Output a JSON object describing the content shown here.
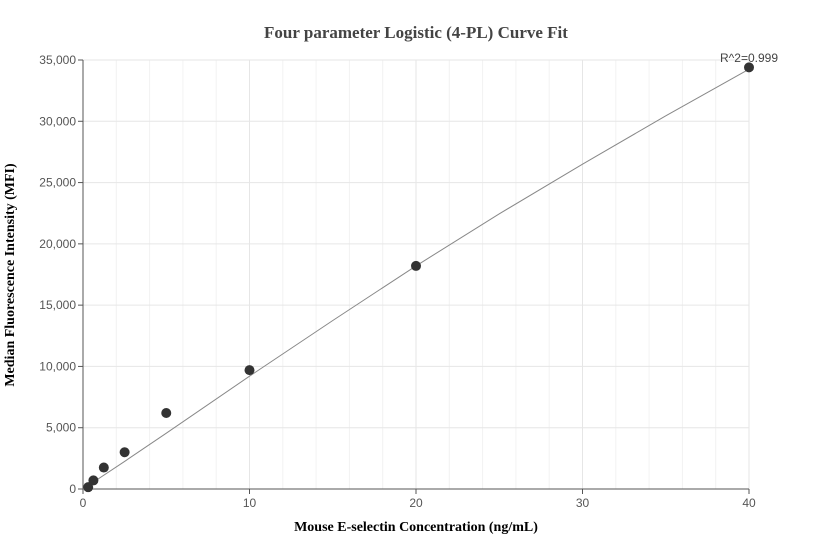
{
  "chart_data": {
    "type": "scatter",
    "title": "Four parameter Logistic (4-PL) Curve Fit",
    "xlabel": "Mouse E-selectin Concentration (ng/mL)",
    "ylabel": "Median Fluorescence Intensity (MFI)",
    "xlim": [
      0,
      40
    ],
    "ylim": [
      0,
      35000
    ],
    "x_ticks": [
      0,
      10,
      20,
      30,
      40
    ],
    "y_ticks": [
      0,
      5000,
      10000,
      15000,
      20000,
      25000,
      30000,
      35000
    ],
    "x_tick_labels": [
      "0",
      "10",
      "20",
      "30",
      "40"
    ],
    "y_tick_labels": [
      "0",
      "5,000",
      "10,000",
      "15,000",
      "20,000",
      "25,000",
      "30,000",
      "35,000"
    ],
    "grid": true,
    "annotation": "R^2=0.999",
    "series": [
      {
        "points": [
          {
            "x": 0.3125,
            "y": 150
          },
          {
            "x": 0.625,
            "y": 700
          },
          {
            "x": 1.25,
            "y": 1750
          },
          {
            "x": 2.5,
            "y": 3000
          },
          {
            "x": 5,
            "y": 6200
          },
          {
            "x": 10,
            "y": 9700
          },
          {
            "x": 20,
            "y": 18200
          },
          {
            "x": 40,
            "y": 34400
          }
        ]
      }
    ],
    "fit_curve": {
      "x": [
        0,
        2.5,
        5,
        10,
        15,
        20,
        25,
        30,
        35,
        40
      ],
      "y": [
        0,
        2250,
        4550,
        9200,
        13750,
        18200,
        22450,
        26500,
        30450,
        34250
      ]
    },
    "colors": {
      "marker": "#333333",
      "fit_line": "#888888",
      "grid": "#e6e6e6"
    }
  }
}
